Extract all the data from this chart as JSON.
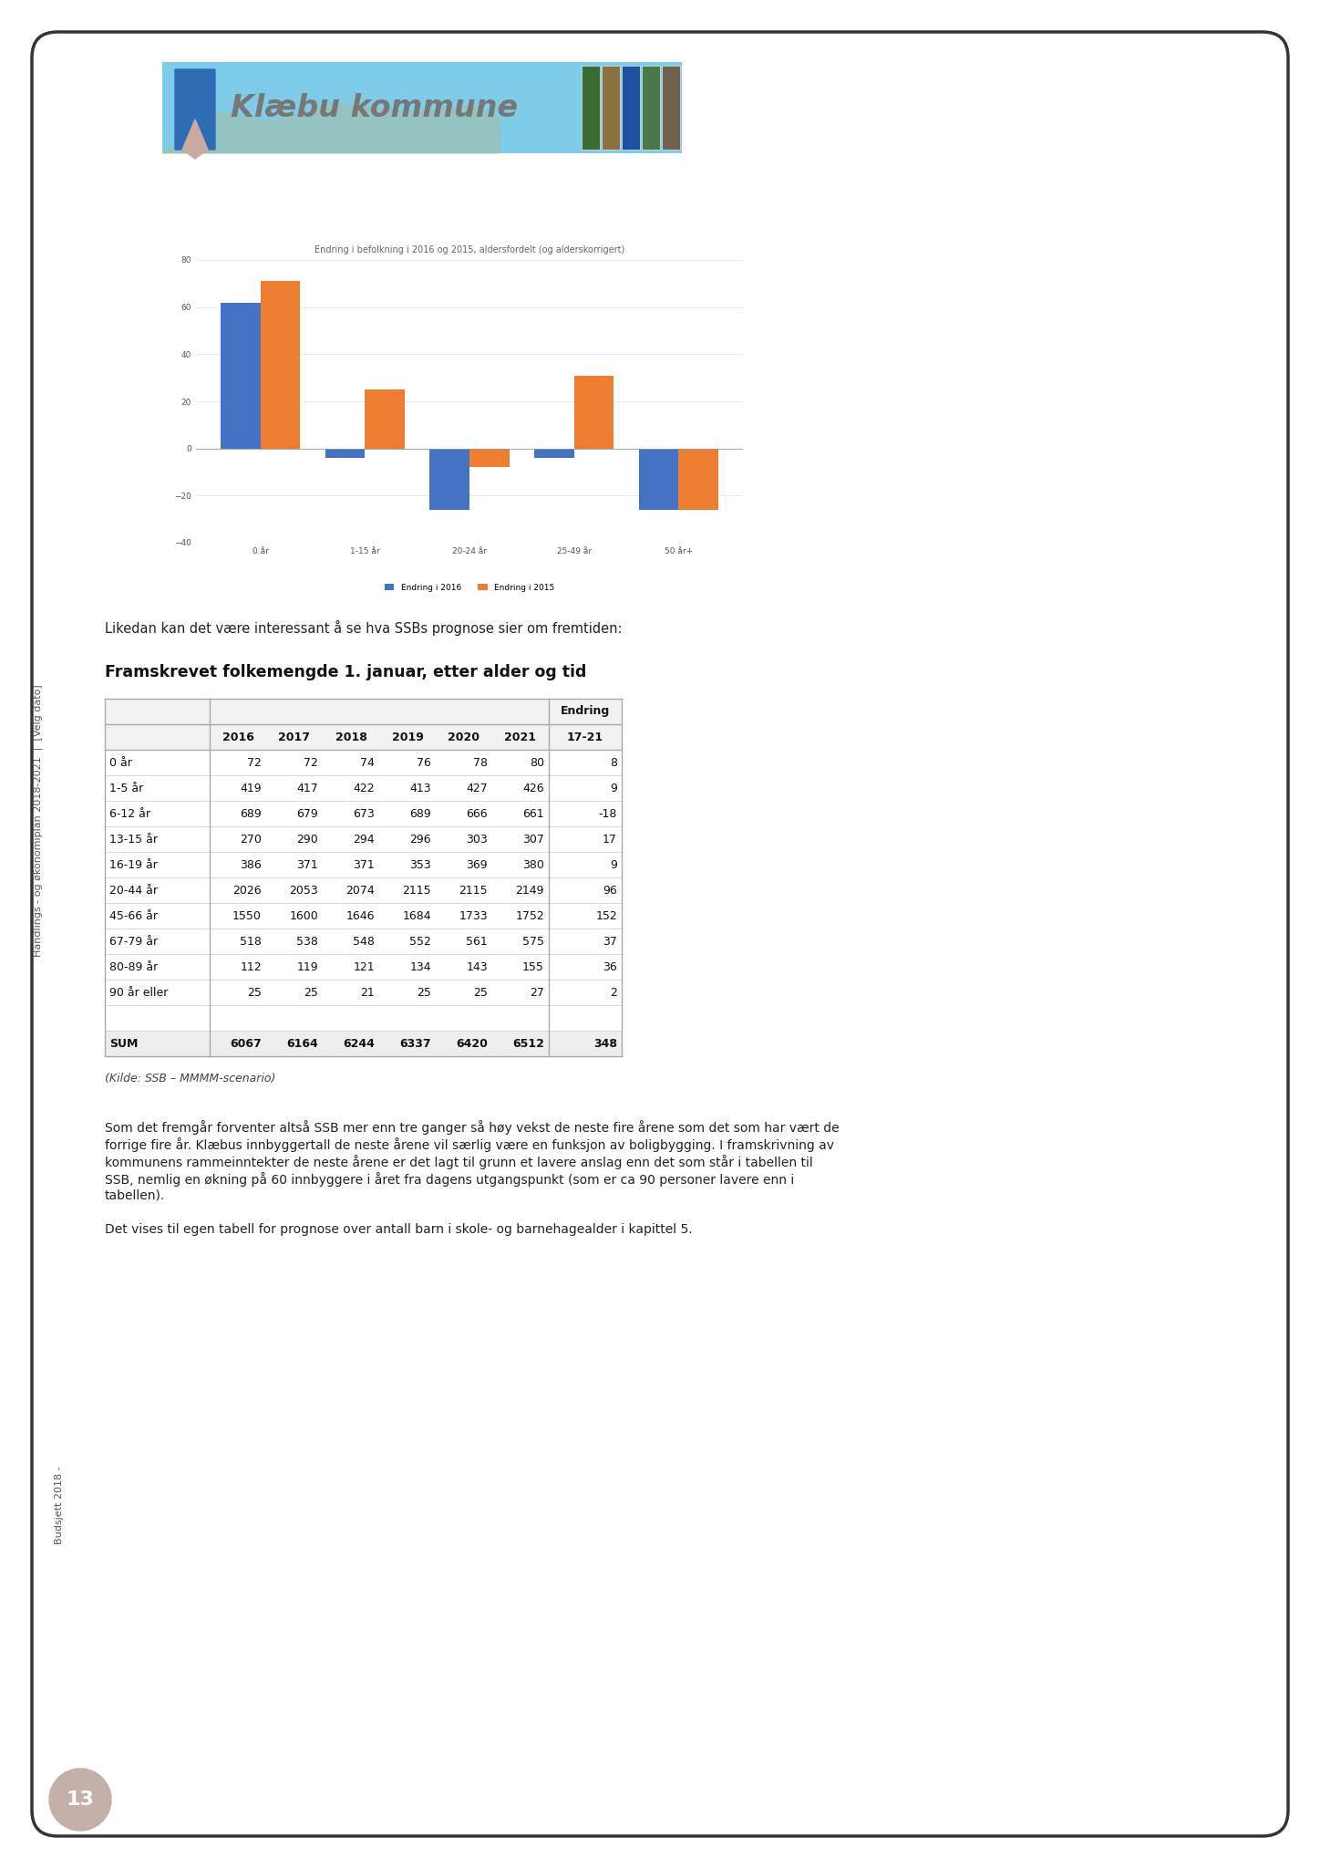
{
  "page_bg": "#ffffff",
  "border_color": "#333333",
  "header_text": "Klæbu kommune",
  "header_text_color": "#777777",
  "chart_title": "Endring i befolkning i 2016 og 2015, aldersfordelt (og alderskorrigert)",
  "chart_categories": [
    "0 år",
    "1-15 år",
    "20-24 år",
    "25-49 år",
    "50 år+"
  ],
  "chart_series1_name": "Endring i 2016",
  "chart_series2_name": "Endring i 2015",
  "chart_series1_color": "#4472c4",
  "chart_series2_color": "#ed7d31",
  "chart_series1_values": [
    62,
    -4,
    -26,
    -4,
    -26
  ],
  "chart_series2_values": [
    71,
    25,
    -8,
    31,
    -26
  ],
  "chart_ylim": [
    -40,
    80
  ],
  "chart_yticks": [
    -40,
    -20,
    0,
    20,
    40,
    60,
    80
  ],
  "table_title": "Framskrevet folkemengde 1. januar, etter alder og tid",
  "table_col_widths": [
    115,
    62,
    62,
    62,
    62,
    62,
    62,
    80
  ],
  "table_header1": [
    "",
    "",
    "",
    "",
    "",
    "",
    "",
    "Endring"
  ],
  "table_header2": [
    "",
    "2016",
    "2017",
    "2018",
    "2019",
    "2020",
    "2021",
    "17-21"
  ],
  "table_rows": [
    [
      "0 år",
      "72",
      "72",
      "74",
      "76",
      "78",
      "80",
      "8"
    ],
    [
      "1-5 år",
      "419",
      "417",
      "422",
      "413",
      "427",
      "426",
      "9"
    ],
    [
      "6-12 år",
      "689",
      "679",
      "673",
      "689",
      "666",
      "661",
      "-18"
    ],
    [
      "13-15 år",
      "270",
      "290",
      "294",
      "296",
      "303",
      "307",
      "17"
    ],
    [
      "16-19 år",
      "386",
      "371",
      "371",
      "353",
      "369",
      "380",
      "9"
    ],
    [
      "20-44 år",
      "2026",
      "2053",
      "2074",
      "2115",
      "2115",
      "2149",
      "96"
    ],
    [
      "45-66 år",
      "1550",
      "1600",
      "1646",
      "1684",
      "1733",
      "1752",
      "152"
    ],
    [
      "67-79 år",
      "518",
      "538",
      "548",
      "552",
      "561",
      "575",
      "37"
    ],
    [
      "80-89 år",
      "112",
      "119",
      "121",
      "134",
      "143",
      "155",
      "36"
    ],
    [
      "90 år eller",
      "25",
      "25",
      "21",
      "25",
      "25",
      "27",
      "2"
    ],
    [
      "",
      "",
      "",
      "",
      "",
      "",
      "",
      ""
    ],
    [
      "SUM",
      "6067",
      "6164",
      "6244",
      "6337",
      "6420",
      "6512",
      "348"
    ]
  ],
  "table_source": "(Kilde: SSB – MMMM-scenario)",
  "intro_text": "Likedan kan det være interessant å se hva SSBs prognose sier om fremtiden:",
  "body_text1_lines": [
    "Som det fremgår forventer altså SSB mer enn tre ganger så høy vekst de neste fire årene som det som har vært de",
    "forrige fire år. Klæbus innbyggertall de neste årene vil særlig være en funksjon av boligbygging. I framskrivning av",
    "kommunens rammeinntekter de neste årene er det lagt til grunn et lavere anslag enn det som står i tabellen til",
    "SSB, nemlig en økning på 60 innbyggere i året fra dagens utgangspunkt (som er ca 90 personer lavere enn i",
    "tabellen)."
  ],
  "body_text2": "Det vises til egen tabell for prognose over antall barn i skole- og barnehagealder i kapittel 5.",
  "left_label1": "Handlings - og økonomiplan 2018-2021  |  [Velg dato]",
  "left_label2": "Budsjett 2018 -",
  "page_number": "13",
  "page_circle_color": "#c4b0a8"
}
